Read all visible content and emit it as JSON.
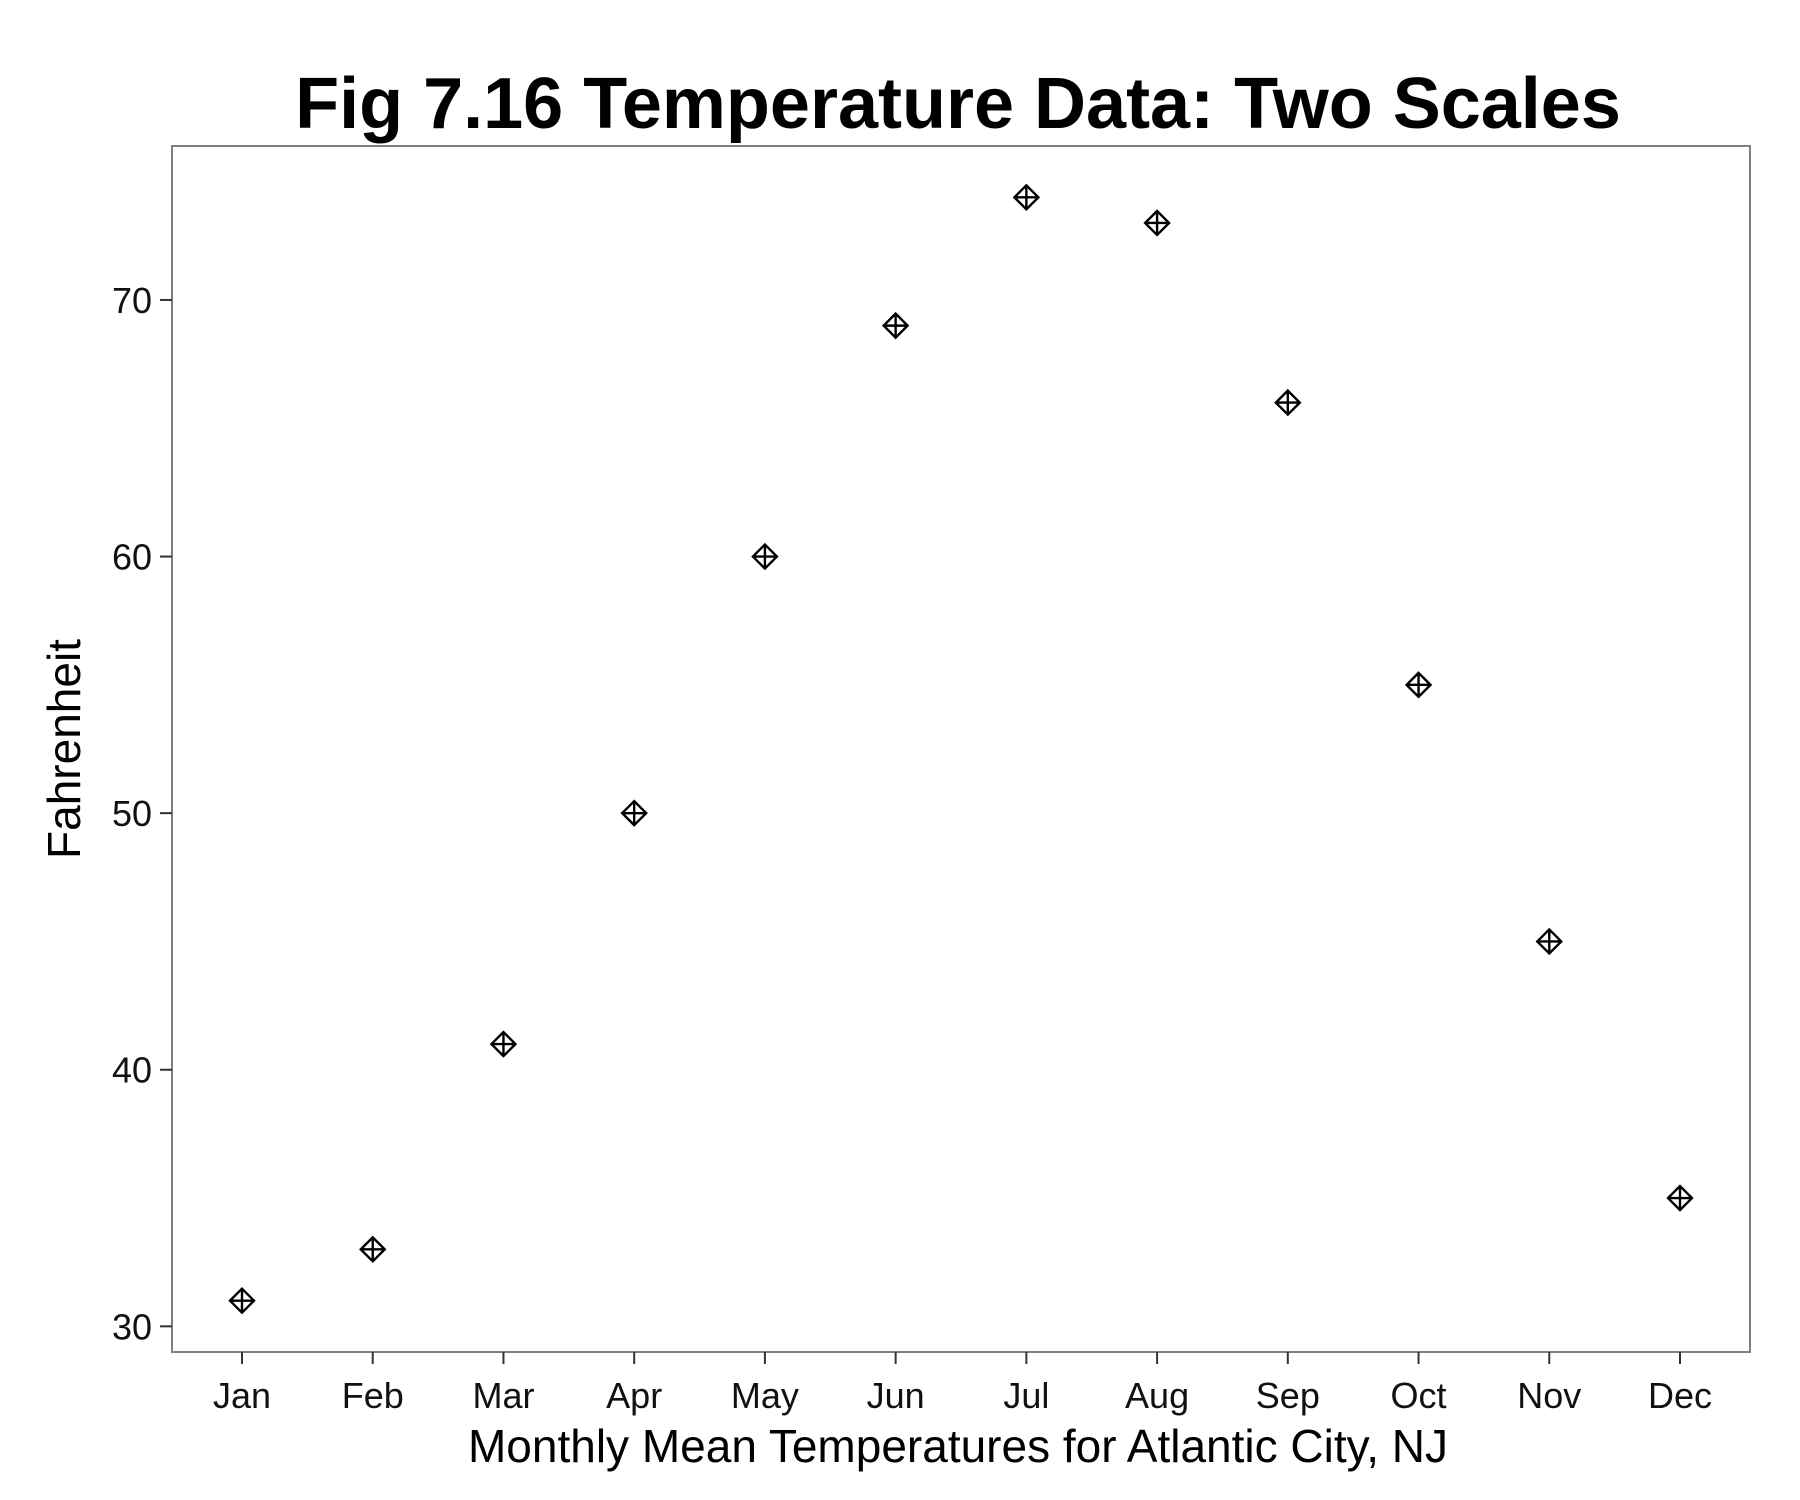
{
  "chart_data": {
    "type": "scatter",
    "title": "Fig 7.16 Temperature Data: Two Scales",
    "xlabel": "Monthly Mean Temperatures for Atlantic City, NJ",
    "ylabel": "Fahrenheit",
    "categories": [
      "Jan",
      "Feb",
      "Mar",
      "Apr",
      "May",
      "Jun",
      "Jul",
      "Aug",
      "Sep",
      "Oct",
      "Nov",
      "Dec"
    ],
    "values": [
      31,
      33,
      41,
      50,
      60,
      69,
      74,
      73,
      66,
      55,
      45,
      35
    ],
    "ylim": [
      29,
      76
    ],
    "yticks": [
      30,
      40,
      50,
      60,
      70
    ],
    "grid": false,
    "legend": "none",
    "marker": "diamond-plus",
    "colors": {
      "marker": "#000000",
      "frame": "#7f7f7f",
      "background": "#ffffff"
    }
  }
}
